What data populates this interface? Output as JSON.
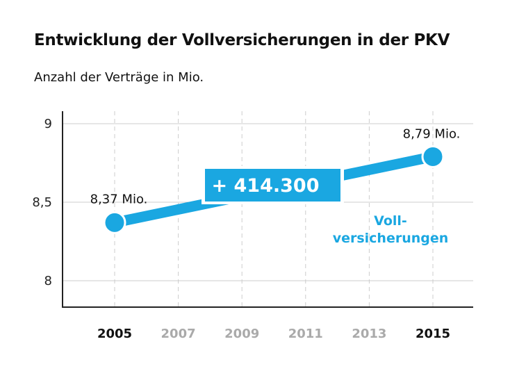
{
  "title": "Entwicklung der Vollversicherungen in der PKV",
  "subtitle": "Anzahl der Verträge in Mio.",
  "colors": {
    "accent": "#1aa7e1",
    "tick_emphasis": "#111111",
    "tick_muted": "#aaaaaa",
    "grid": "#cccccc",
    "axis": "#222222"
  },
  "chart_data": {
    "type": "line",
    "x_ticks": [
      "2005",
      "2007",
      "2009",
      "2011",
      "2013",
      "2015"
    ],
    "x_tick_emphasis": [
      true,
      false,
      false,
      false,
      false,
      true
    ],
    "y_ticks": [
      "8",
      "8,5",
      "9"
    ],
    "ylim": [
      7.83,
      9.08
    ],
    "grid": true,
    "series": [
      {
        "name": "Voll-\nversicherungen",
        "name_lines": [
          "Voll-",
          "versicherungen"
        ],
        "x": [
          2005,
          2015
        ],
        "y": [
          8.37,
          8.79
        ],
        "labels": [
          "8,37 Mio.",
          "8,79 Mio."
        ]
      }
    ],
    "annotation": "+ 414.300"
  }
}
